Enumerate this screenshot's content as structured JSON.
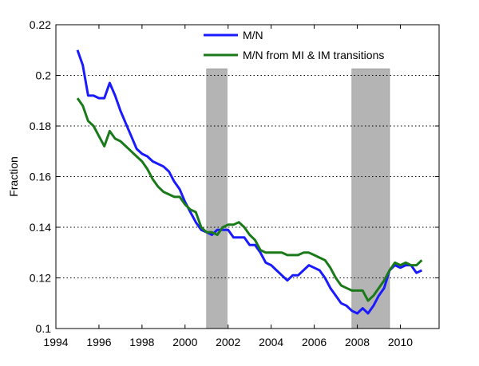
{
  "chart_data": {
    "type": "line",
    "title": "",
    "xlabel": "",
    "ylabel": "Fraction",
    "xlim": [
      1994,
      2011.8
    ],
    "ylim": [
      0.1,
      0.22
    ],
    "x_ticks": [
      1994,
      1996,
      1998,
      2000,
      2002,
      2004,
      2006,
      2008,
      2010
    ],
    "y_ticks": [
      0.1,
      0.12,
      0.14,
      0.16,
      0.18,
      0.2,
      0.22
    ],
    "y_tick_labels": [
      "0.1",
      "0.12",
      "0.14",
      "0.16",
      "0.18",
      "0.2",
      "0.22"
    ],
    "grid": "dotted horizontal",
    "legend_position": "top-right",
    "recession_bands": [
      {
        "start": 2001.0,
        "end": 2001.95
      },
      {
        "start": 2007.75,
        "end": 2009.5
      }
    ],
    "series": [
      {
        "name": "M/N",
        "color": "#1a1aff",
        "points": [
          [
            1995.0,
            0.21
          ],
          [
            1995.25,
            0.204
          ],
          [
            1995.5,
            0.192
          ],
          [
            1995.75,
            0.192
          ],
          [
            1996.0,
            0.191
          ],
          [
            1996.25,
            0.191
          ],
          [
            1996.5,
            0.197
          ],
          [
            1996.75,
            0.192
          ],
          [
            1997.0,
            0.186
          ],
          [
            1997.25,
            0.181
          ],
          [
            1997.5,
            0.176
          ],
          [
            1997.75,
            0.171
          ],
          [
            1998.0,
            0.169
          ],
          [
            1998.25,
            0.168
          ],
          [
            1998.5,
            0.166
          ],
          [
            1998.75,
            0.165
          ],
          [
            1999.0,
            0.164
          ],
          [
            1999.25,
            0.162
          ],
          [
            1999.5,
            0.158
          ],
          [
            1999.75,
            0.155
          ],
          [
            2000.0,
            0.15
          ],
          [
            2000.25,
            0.146
          ],
          [
            2000.5,
            0.142
          ],
          [
            2000.75,
            0.139
          ],
          [
            2001.0,
            0.138
          ],
          [
            2001.25,
            0.137
          ],
          [
            2001.5,
            0.139
          ],
          [
            2001.75,
            0.139
          ],
          [
            2002.0,
            0.139
          ],
          [
            2002.25,
            0.136
          ],
          [
            2002.5,
            0.136
          ],
          [
            2002.75,
            0.136
          ],
          [
            2003.0,
            0.133
          ],
          [
            2003.25,
            0.133
          ],
          [
            2003.5,
            0.13
          ],
          [
            2003.75,
            0.126
          ],
          [
            2004.0,
            0.125
          ],
          [
            2004.25,
            0.123
          ],
          [
            2004.5,
            0.121
          ],
          [
            2004.75,
            0.119
          ],
          [
            2005.0,
            0.121
          ],
          [
            2005.25,
            0.121
          ],
          [
            2005.5,
            0.123
          ],
          [
            2005.75,
            0.125
          ],
          [
            2006.0,
            0.124
          ],
          [
            2006.25,
            0.123
          ],
          [
            2006.5,
            0.12
          ],
          [
            2006.75,
            0.116
          ],
          [
            2007.0,
            0.113
          ],
          [
            2007.25,
            0.11
          ],
          [
            2007.5,
            0.109
          ],
          [
            2007.75,
            0.107
          ],
          [
            2008.0,
            0.106
          ],
          [
            2008.25,
            0.108
          ],
          [
            2008.5,
            0.106
          ],
          [
            2008.75,
            0.109
          ],
          [
            2009.0,
            0.113
          ],
          [
            2009.25,
            0.116
          ],
          [
            2009.5,
            0.123
          ],
          [
            2009.75,
            0.125
          ],
          [
            2010.0,
            0.124
          ],
          [
            2010.25,
            0.125
          ],
          [
            2010.5,
            0.125
          ],
          [
            2010.75,
            0.122
          ],
          [
            2011.0,
            0.123
          ]
        ]
      },
      {
        "name": "M/N from MI & IM transitions",
        "color": "#1a7a1a",
        "points": [
          [
            1995.0,
            0.191
          ],
          [
            1995.25,
            0.188
          ],
          [
            1995.5,
            0.182
          ],
          [
            1995.75,
            0.18
          ],
          [
            1996.0,
            0.176
          ],
          [
            1996.25,
            0.172
          ],
          [
            1996.5,
            0.178
          ],
          [
            1996.75,
            0.175
          ],
          [
            1997.0,
            0.174
          ],
          [
            1997.25,
            0.172
          ],
          [
            1997.5,
            0.17
          ],
          [
            1997.75,
            0.168
          ],
          [
            1998.0,
            0.166
          ],
          [
            1998.25,
            0.163
          ],
          [
            1998.5,
            0.159
          ],
          [
            1998.75,
            0.156
          ],
          [
            1999.0,
            0.154
          ],
          [
            1999.25,
            0.153
          ],
          [
            1999.5,
            0.152
          ],
          [
            1999.75,
            0.152
          ],
          [
            2000.0,
            0.149
          ],
          [
            2000.25,
            0.147
          ],
          [
            2000.5,
            0.146
          ],
          [
            2000.75,
            0.14
          ],
          [
            2001.0,
            0.138
          ],
          [
            2001.25,
            0.138
          ],
          [
            2001.5,
            0.137
          ],
          [
            2001.75,
            0.14
          ],
          [
            2002.0,
            0.141
          ],
          [
            2002.25,
            0.141
          ],
          [
            2002.5,
            0.142
          ],
          [
            2002.75,
            0.14
          ],
          [
            2003.0,
            0.137
          ],
          [
            2003.25,
            0.135
          ],
          [
            2003.5,
            0.131
          ],
          [
            2003.75,
            0.13
          ],
          [
            2004.0,
            0.13
          ],
          [
            2004.25,
            0.13
          ],
          [
            2004.5,
            0.13
          ],
          [
            2004.75,
            0.129
          ],
          [
            2005.0,
            0.129
          ],
          [
            2005.25,
            0.129
          ],
          [
            2005.5,
            0.13
          ],
          [
            2005.75,
            0.13
          ],
          [
            2006.0,
            0.129
          ],
          [
            2006.25,
            0.128
          ],
          [
            2006.5,
            0.127
          ],
          [
            2006.75,
            0.124
          ],
          [
            2007.0,
            0.12
          ],
          [
            2007.25,
            0.117
          ],
          [
            2007.5,
            0.116
          ],
          [
            2007.75,
            0.115
          ],
          [
            2008.0,
            0.115
          ],
          [
            2008.25,
            0.115
          ],
          [
            2008.5,
            0.111
          ],
          [
            2008.75,
            0.113
          ],
          [
            2009.0,
            0.116
          ],
          [
            2009.25,
            0.119
          ],
          [
            2009.5,
            0.123
          ],
          [
            2009.75,
            0.126
          ],
          [
            2010.0,
            0.125
          ],
          [
            2010.25,
            0.126
          ],
          [
            2010.5,
            0.125
          ],
          [
            2010.75,
            0.125
          ],
          [
            2011.0,
            0.127
          ]
        ]
      }
    ]
  }
}
